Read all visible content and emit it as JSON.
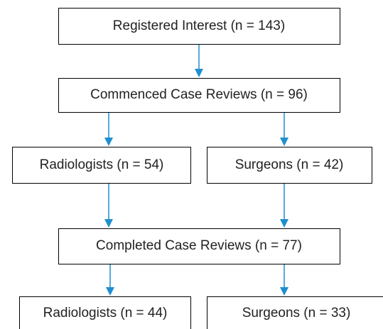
{
  "nodes": [
    {
      "label": "Registered Interest (n = 143)"
    },
    {
      "label": "Commenced Case Reviews (n = 96)"
    },
    {
      "label": "Radiologists (n = 54)"
    },
    {
      "label": "Surgeons (n = 42)"
    },
    {
      "label": "Completed Case Reviews (n = 77)"
    },
    {
      "label": "Radiologists (n = 44)"
    },
    {
      "label": "Surgeons (n = 33)"
    }
  ]
}
